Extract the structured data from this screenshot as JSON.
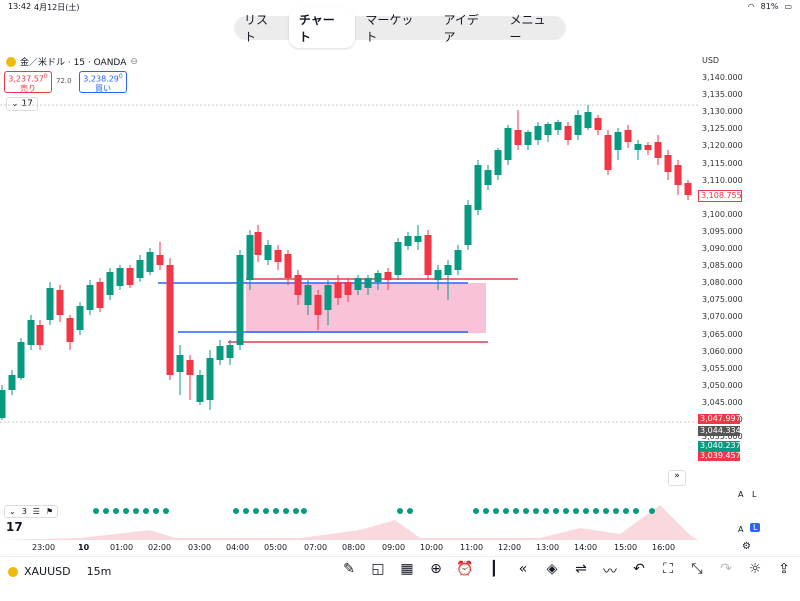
{
  "status": {
    "time": "13:42",
    "date": "4月12日(土)",
    "battery": "81%"
  },
  "nav": {
    "tabs": [
      "リスト",
      "チャート",
      "マーケット",
      "アイデア",
      "メニュー"
    ]
  },
  "symbol": {
    "title": "金／米ドル · 15 · OANDA",
    "sell_price": "3,237.57",
    "sell_sup": "0",
    "sell_label": "売り",
    "spread": "72.0",
    "buy_price": "3,238.29",
    "buy_sup": "0",
    "buy_label": "買い",
    "interval": "17"
  },
  "axis": {
    "currency": "USD",
    "prices": [
      "3,140.000",
      "3,135.000",
      "3,130.000",
      "3,125.000",
      "3,120.000",
      "3,115.000",
      "3,110.000",
      "3,105.000",
      "3,100.000",
      "3,095.000",
      "3,090.000",
      "3,085.000",
      "3,080.000",
      "3,075.000",
      "3,070.000",
      "3,065.000",
      "3,060.000",
      "3,055.000",
      "3,050.000",
      "3,045.000",
      "3,040.000",
      "3,035.000"
    ],
    "tags": [
      {
        "value": "3,108.755",
        "color": "#f23645",
        "outline": true
      },
      {
        "value": "3,047.997",
        "color": "#f23645"
      },
      {
        "value": "3,044.334",
        "color": "#555555"
      },
      {
        "value": "3,040.237",
        "color": "#089981"
      },
      {
        "value": "3,039.457",
        "color": "#f23645"
      }
    ]
  },
  "time_axis": [
    "23:00",
    "10",
    "01:00",
    "02:00",
    "03:00",
    "04:00",
    "05:00",
    "07:00",
    "08:00",
    "09:00",
    "10:00",
    "11:00",
    "12:00",
    "13:00",
    "14:00",
    "15:00",
    "16:00"
  ],
  "bottom": {
    "symbol": "XAUUSD",
    "interval": "15m"
  },
  "indicator_label": "3",
  "colors": {
    "up": "#089981",
    "down": "#f23645",
    "zone": "#f7b3cf",
    "hline_blue": "#2962ff",
    "hline_red": "#e04050"
  }
}
